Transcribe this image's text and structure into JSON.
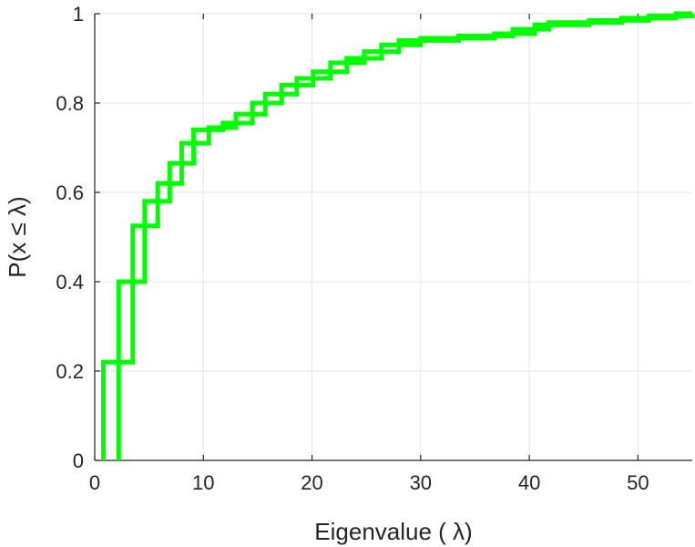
{
  "chart_data": {
    "type": "line",
    "xlabel": "Eigenvalue (  λ)",
    "ylabel": "P(x ≤ λ)",
    "xlim": [
      0,
      55
    ],
    "ylim": [
      0,
      1
    ],
    "x_ticks": [
      "0",
      "10",
      "20",
      "30",
      "40",
      "50"
    ],
    "y_ticks": [
      "0",
      "0.2",
      "0.4",
      "0.6",
      "0.8",
      "1"
    ],
    "grid": true,
    "series_color": "#00ff00",
    "series": [
      {
        "x": [
          0.8,
          2.2,
          3.5,
          4.6,
          5.8,
          6.9,
          8.0,
          9.1,
          10.5,
          11.8,
          13.0,
          14.5,
          15.7,
          17.2,
          18.6,
          20.1,
          21.7,
          23.2,
          24.8,
          26.4,
          28.0,
          30.0,
          33.5,
          36.8,
          38.5,
          40.5,
          41.8,
          45.5,
          48.5,
          51.0,
          53.5,
          55.0
        ],
        "y": [
          0.22,
          0.4,
          0.525,
          0.58,
          0.62,
          0.665,
          0.71,
          0.74,
          0.745,
          0.755,
          0.775,
          0.8,
          0.82,
          0.84,
          0.855,
          0.87,
          0.89,
          0.9,
          0.915,
          0.93,
          0.94,
          0.945,
          0.95,
          0.955,
          0.965,
          0.975,
          0.98,
          0.985,
          0.99,
          0.995,
          1.0,
          1.0
        ]
      },
      {
        "x": [
          2.2,
          3.5,
          4.6,
          5.8,
          6.9,
          8.0,
          9.1,
          10.5,
          11.8,
          13.0,
          14.5,
          15.7,
          17.2,
          18.6,
          20.1,
          21.7,
          23.2,
          24.8,
          26.4,
          28.0,
          30.0,
          33.5,
          36.8,
          38.5,
          40.5,
          41.8,
          45.5,
          48.5,
          51.0,
          53.5,
          55.0
        ],
        "y": [
          0.22,
          0.4,
          0.525,
          0.58,
          0.62,
          0.665,
          0.71,
          0.74,
          0.745,
          0.755,
          0.775,
          0.8,
          0.82,
          0.84,
          0.855,
          0.87,
          0.89,
          0.9,
          0.915,
          0.93,
          0.94,
          0.945,
          0.95,
          0.955,
          0.965,
          0.975,
          0.98,
          0.985,
          0.99,
          0.995,
          1.0
        ]
      }
    ]
  }
}
